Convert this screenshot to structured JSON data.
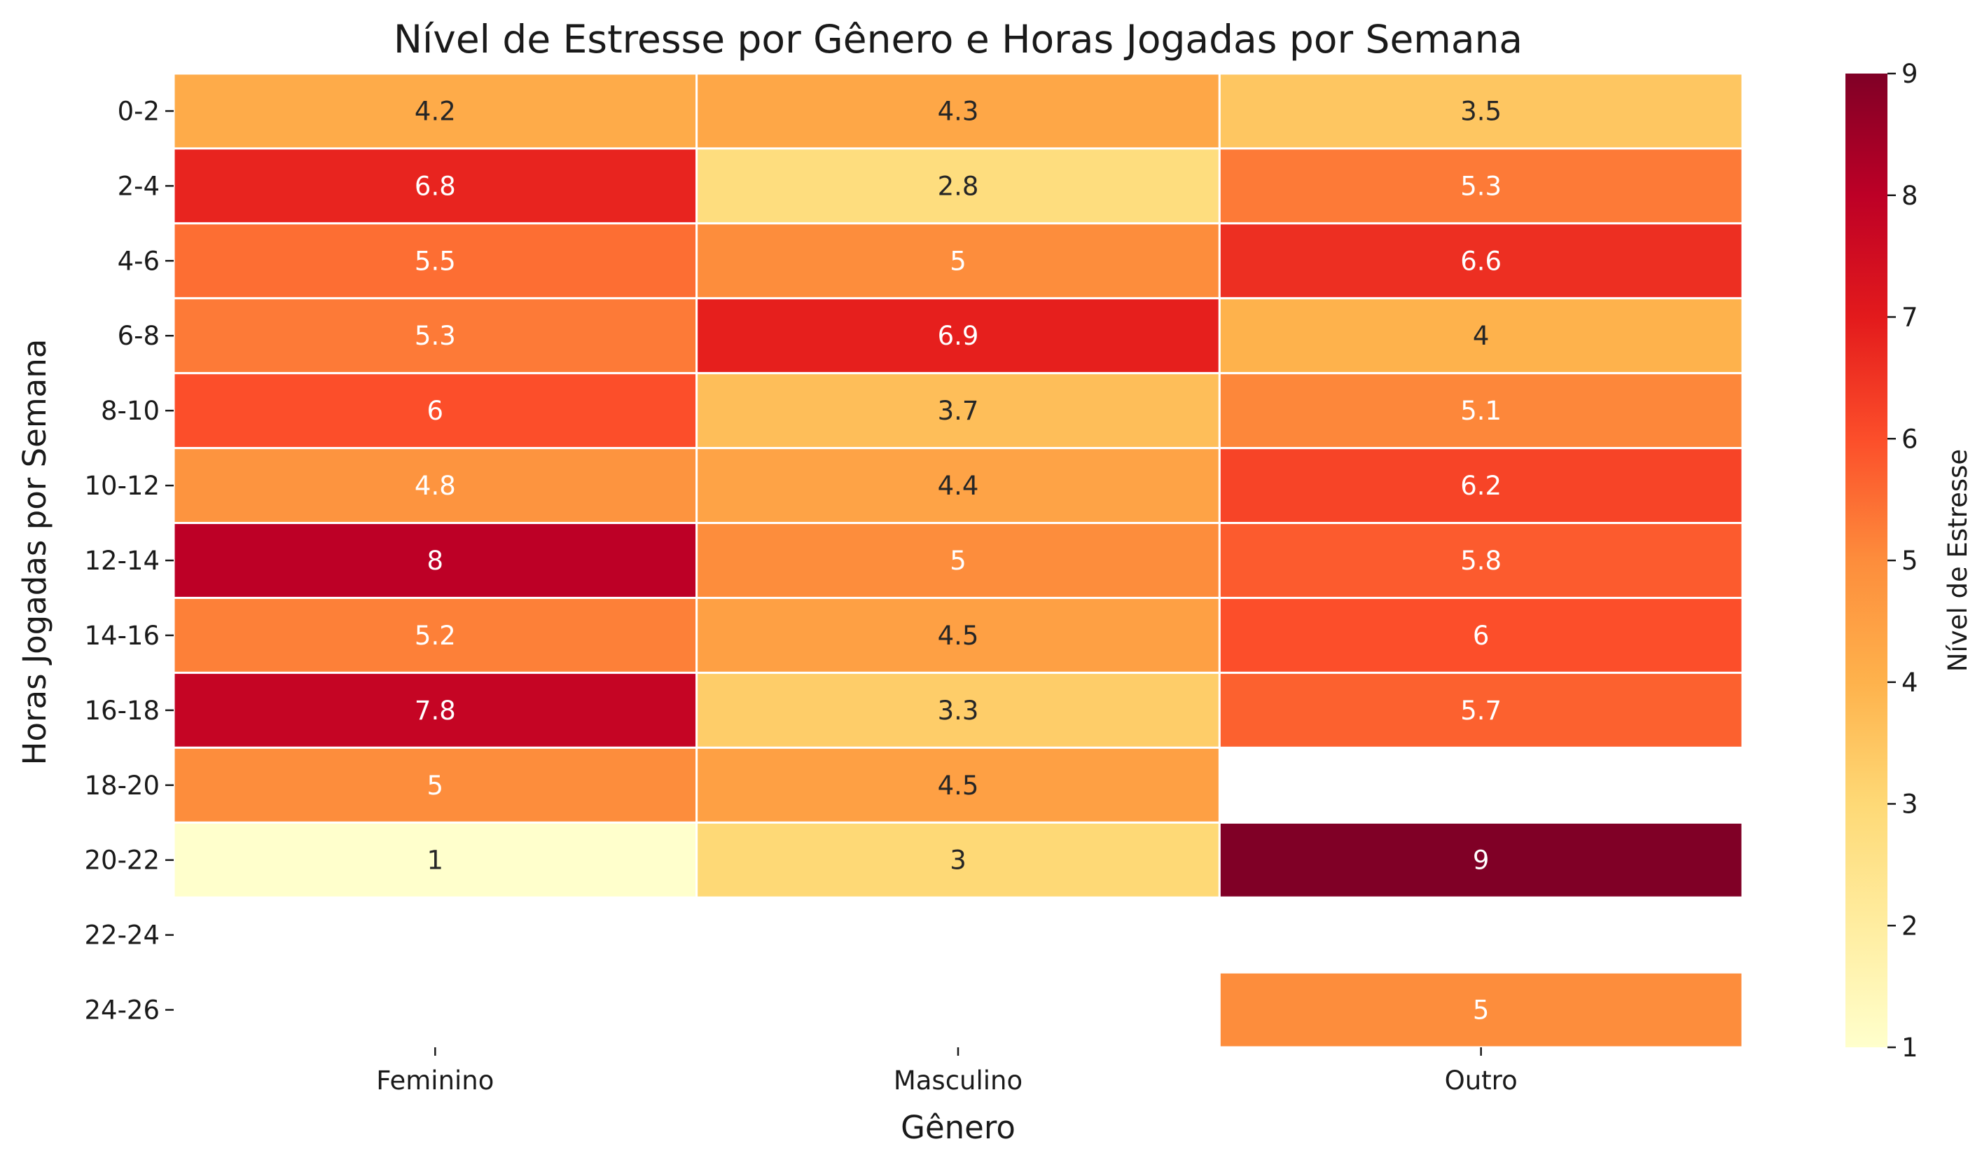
{
  "chart_data": {
    "type": "heatmap",
    "title": "Nível de Estresse por Gênero e Horas Jogadas por Semana",
    "xlabel": "Gênero",
    "ylabel": "Horas Jogadas por Semana",
    "x_categories": [
      "Feminino",
      "Masculino",
      "Outro"
    ],
    "y_categories": [
      "0-2",
      "2-4",
      "4-6",
      "6-8",
      "8-10",
      "10-12",
      "12-14",
      "14-16",
      "16-18",
      "18-20",
      "20-22",
      "22-24",
      "24-26"
    ],
    "values": [
      [
        4.2,
        4.3,
        3.5
      ],
      [
        6.8,
        2.8,
        5.3
      ],
      [
        5.5,
        5,
        6.6
      ],
      [
        5.3,
        6.9,
        4
      ],
      [
        6,
        3.7,
        5.1
      ],
      [
        4.8,
        4.4,
        6.2
      ],
      [
        8,
        5,
        5.8
      ],
      [
        5.2,
        4.5,
        6
      ],
      [
        7.8,
        3.3,
        5.7
      ],
      [
        5,
        4.5,
        null
      ],
      [
        1,
        3,
        9
      ],
      [
        null,
        null,
        null
      ],
      [
        null,
        null,
        5
      ]
    ],
    "colorbar": {
      "label": "Nível de Estresse",
      "min": 1,
      "max": 9,
      "ticks": [
        1,
        2,
        3,
        4,
        5,
        6,
        7,
        8,
        9
      ],
      "colormap": "YlOrRd",
      "colors": [
        "#ffffcc",
        "#ffeda0",
        "#fed976",
        "#feb24c",
        "#fd8d3c",
        "#fc4e2a",
        "#e31a1c",
        "#bd0026",
        "#800026"
      ]
    },
    "annotations": true,
    "grid": false
  }
}
